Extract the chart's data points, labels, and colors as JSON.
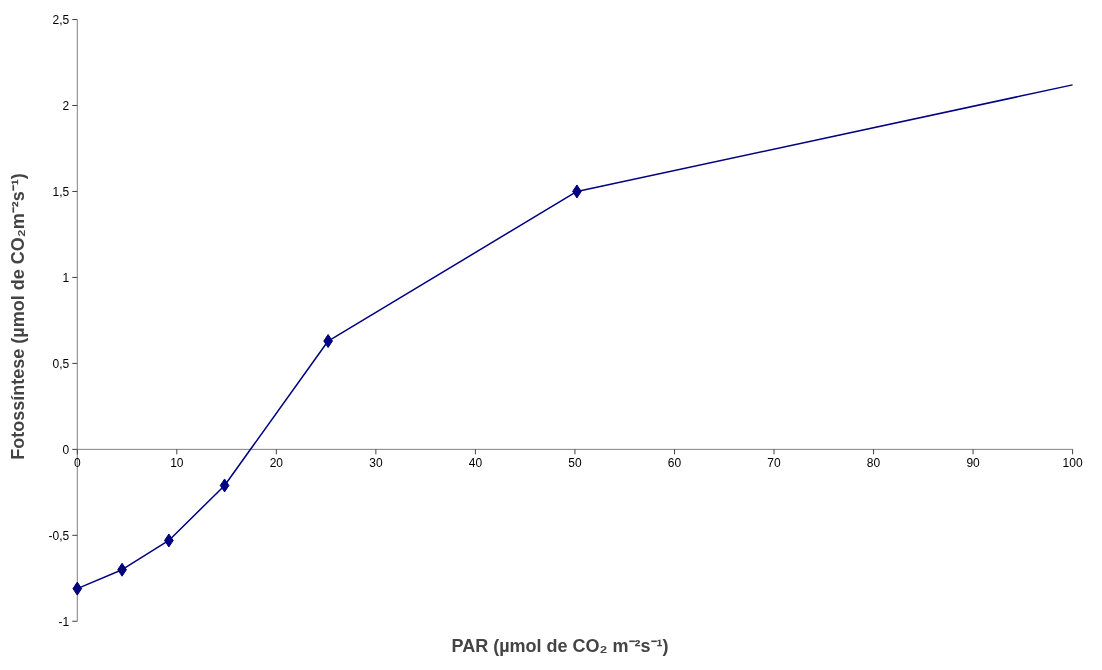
{
  "chart_data": {
    "type": "line",
    "xlabel": "PAR (µmol de CO₂  m⁻²s⁻¹)",
    "ylabel": "Fotossíntese (µmol de CO₂m⁻²s⁻¹)",
    "series": [
      {
        "color": "#000080",
        "marker": "diamond",
        "x": [
          0,
          4.5,
          9.2,
          14.8,
          25.2,
          50.2
        ],
        "values": [
          -0.81,
          -0.7,
          -0.53,
          -0.21,
          0.63,
          1.5
        ]
      },
      {
        "color": "#000080",
        "marker": "none",
        "x": [
          50.2,
          100
        ],
        "values": [
          1.5,
          2.12
        ]
      }
    ],
    "xlim": [
      0,
      100
    ],
    "xticks": [
      0,
      10,
      20,
      30,
      40,
      50,
      60,
      70,
      80,
      90,
      100
    ],
    "ylim": [
      -1,
      2.5
    ],
    "yticks": [
      -1,
      {
        "value": -0.5,
        "label": "-0,5"
      },
      0,
      {
        "value": 0.5,
        "label": "0,5"
      },
      1,
      {
        "value": 1.5,
        "label": "1,5"
      },
      2,
      {
        "value": 2.5,
        "label": "2,5"
      }
    ],
    "grid": false
  }
}
